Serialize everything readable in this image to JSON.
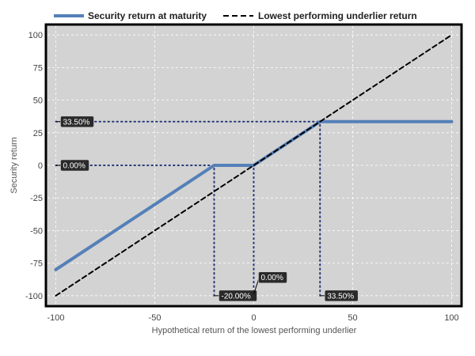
{
  "chart_data": {
    "type": "line",
    "title": "",
    "xlabel": "Hypothetical return of the lowest performing underlier",
    "ylabel": "Security return",
    "xlim": [
      -105,
      105
    ],
    "ylim": [
      -108,
      108
    ],
    "x_ticks": [
      -100,
      -50,
      0,
      50,
      100
    ],
    "y_ticks": [
      100,
      75,
      50,
      25,
      0,
      -25,
      -50,
      -75,
      -100
    ],
    "grid": true,
    "legend_position": "top",
    "background_color": "#d3d3d3",
    "series": [
      {
        "name": "Security return at maturity",
        "color": "#5480b8",
        "style": "solid",
        "points": [
          [
            -100,
            -80
          ],
          [
            -20,
            0
          ],
          [
            0,
            0
          ],
          [
            33.5,
            33.5
          ],
          [
            100,
            33.5
          ]
        ]
      },
      {
        "name": "Lowest performing underlier return",
        "color": "#000000",
        "style": "dashed",
        "points": [
          [
            -100,
            -100
          ],
          [
            100,
            100
          ]
        ]
      }
    ],
    "reference_lines": [
      {
        "kind": "horizontal",
        "y": 33.5,
        "x_from": -100,
        "x_to": 33.5
      },
      {
        "kind": "horizontal",
        "y": 0,
        "x_from": -100,
        "x_to": 0
      },
      {
        "kind": "vertical",
        "x": -20,
        "y_from": -100,
        "y_to": 0
      },
      {
        "kind": "vertical",
        "x": 0,
        "y_from": -100,
        "y_to": 0
      },
      {
        "kind": "vertical",
        "x": 33.5,
        "y_from": -100,
        "y_to": 33.5
      }
    ],
    "annotations": [
      {
        "text": "33.50%",
        "x": -100,
        "y": 33.5,
        "anchor": "y-axis"
      },
      {
        "text": "0.00%",
        "x": -100,
        "y": 0,
        "anchor": "y-axis"
      },
      {
        "text": "-20.00%",
        "x": -20,
        "y": -100,
        "anchor": "x-axis"
      },
      {
        "text": "0.00%",
        "x": 0,
        "y": -100,
        "anchor": "x-axis-raised"
      },
      {
        "text": "33.50%",
        "x": 33.5,
        "y": -100,
        "anchor": "x-axis"
      }
    ]
  }
}
